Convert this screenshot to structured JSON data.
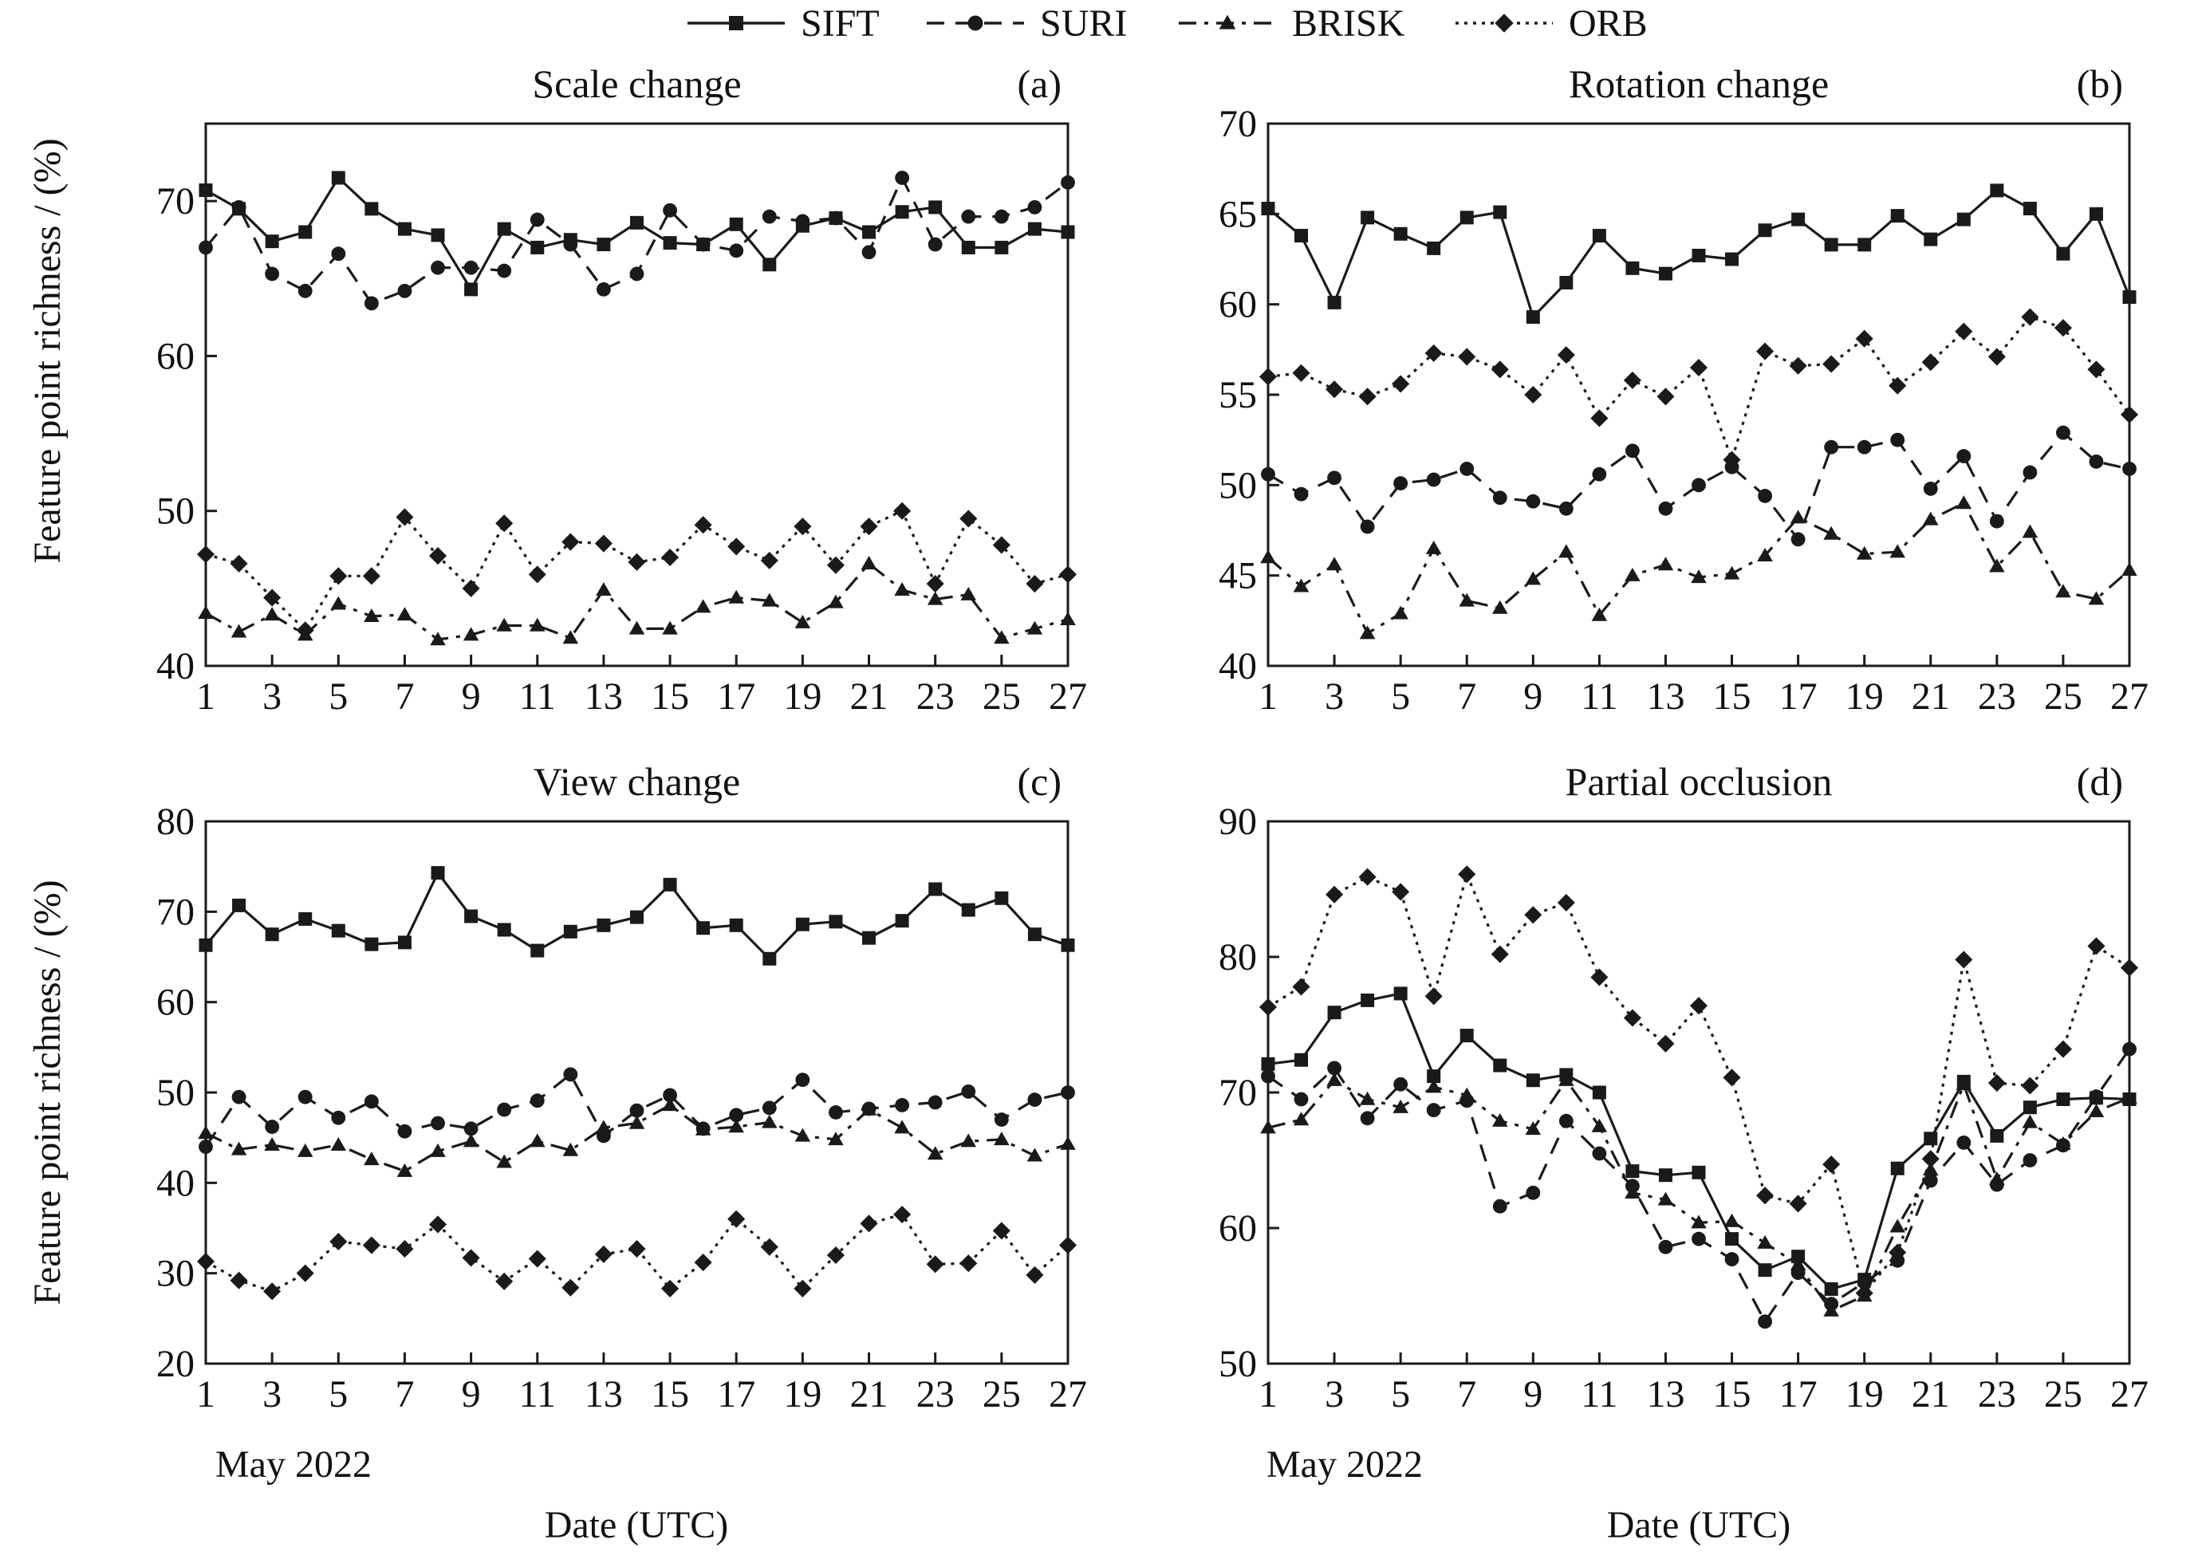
{
  "legend": [
    {
      "name": "SIFT",
      "style": "solid",
      "marker": "square"
    },
    {
      "name": "SURI",
      "style": "dashed",
      "marker": "circle"
    },
    {
      "name": "BRISK",
      "style": "dashdot",
      "marker": "triangle"
    },
    {
      "name": "ORB",
      "style": "dotted",
      "marker": "diamond"
    }
  ],
  "shared": {
    "ylabel": "Feature point richness / (%)",
    "xlabel": "Date (UTC)",
    "month_label": "May 2022",
    "x_ticks": [
      "1",
      "3",
      "5",
      "7",
      "9",
      "11",
      "13",
      "15",
      "17",
      "19",
      "21",
      "23",
      "25",
      "27"
    ]
  },
  "chart_data": [
    {
      "type": "line",
      "title": "Scale change",
      "panel_label": "(a)",
      "x": [
        1,
        2,
        3,
        4,
        5,
        6,
        7,
        8,
        9,
        10,
        11,
        12,
        13,
        14,
        15,
        16,
        17,
        18,
        19,
        20,
        21,
        22,
        23,
        24,
        25,
        26,
        27
      ],
      "ylim": [
        40,
        75
      ],
      "y_ticks": [
        40,
        50,
        60,
        70
      ],
      "series": [
        {
          "name": "SIFT",
          "values": [
            70.7,
            69.5,
            67.4,
            68.0,
            71.5,
            69.5,
            68.2,
            67.8,
            64.3,
            68.2,
            67.0,
            67.5,
            67.2,
            68.6,
            67.3,
            67.2,
            68.5,
            65.9,
            68.4,
            68.9,
            68.0,
            69.3,
            69.6,
            67.0,
            67.0,
            68.2,
            68.0
          ]
        },
        {
          "name": "SURI",
          "values": [
            67.0,
            69.6,
            65.3,
            64.2,
            66.6,
            63.4,
            64.2,
            65.7,
            65.7,
            65.5,
            68.8,
            67.2,
            64.3,
            65.3,
            69.4,
            67.2,
            66.8,
            69.0,
            68.7,
            68.9,
            66.7,
            71.5,
            67.2,
            69.0,
            69.0,
            69.6,
            71.2
          ]
        },
        {
          "name": "BRISK",
          "values": [
            43.4,
            42.2,
            43.3,
            42.0,
            44.0,
            43.2,
            43.3,
            41.7,
            42.0,
            42.6,
            42.6,
            41.8,
            44.9,
            42.4,
            42.4,
            43.8,
            44.4,
            44.2,
            42.8,
            44.1,
            46.6,
            44.9,
            44.3,
            44.6,
            41.8,
            42.4,
            43.0
          ]
        },
        {
          "name": "ORB",
          "values": [
            47.2,
            46.6,
            44.4,
            42.3,
            45.8,
            45.8,
            49.6,
            47.1,
            45.0,
            49.2,
            45.9,
            48.0,
            47.9,
            46.7,
            47.0,
            49.1,
            47.7,
            46.8,
            49.0,
            46.5,
            49.0,
            50.0,
            45.3,
            49.5,
            47.8,
            45.3,
            45.9
          ]
        }
      ]
    },
    {
      "type": "line",
      "title": "Rotation change",
      "panel_label": "(b)",
      "x": [
        1,
        2,
        3,
        4,
        5,
        6,
        7,
        8,
        9,
        10,
        11,
        12,
        13,
        14,
        15,
        16,
        17,
        18,
        19,
        20,
        21,
        22,
        23,
        24,
        25,
        26,
        27
      ],
      "ylim": [
        40,
        70
      ],
      "y_ticks": [
        40,
        45,
        50,
        55,
        60,
        65,
        70
      ],
      "series": [
        {
          "name": "SIFT",
          "values": [
            65.3,
            63.8,
            60.1,
            64.8,
            63.9,
            63.1,
            64.8,
            65.1,
            59.3,
            61.2,
            63.8,
            62.0,
            61.7,
            62.7,
            62.5,
            64.1,
            64.7,
            63.3,
            63.3,
            64.9,
            63.6,
            64.7,
            66.3,
            65.3,
            62.8,
            65.0,
            60.4
          ]
        },
        {
          "name": "SURI",
          "values": [
            50.6,
            49.5,
            50.4,
            47.7,
            50.1,
            50.3,
            50.9,
            49.3,
            49.1,
            48.7,
            50.6,
            51.9,
            48.7,
            50.0,
            51.0,
            49.4,
            47.0,
            52.1,
            52.1,
            52.5,
            49.8,
            51.6,
            48.0,
            50.7,
            52.9,
            51.3,
            50.9
          ]
        },
        {
          "name": "BRISK",
          "values": [
            46.0,
            44.4,
            45.6,
            41.8,
            42.9,
            46.5,
            43.6,
            43.2,
            44.8,
            46.3,
            42.8,
            45.0,
            45.6,
            44.9,
            45.1,
            46.1,
            48.2,
            47.3,
            46.2,
            46.3,
            48.1,
            49.0,
            45.5,
            47.4,
            44.1,
            43.7,
            45.3
          ]
        },
        {
          "name": "ORB",
          "values": [
            56.0,
            56.2,
            55.3,
            54.9,
            55.6,
            57.3,
            57.1,
            56.4,
            55.0,
            57.2,
            53.7,
            55.8,
            54.9,
            56.5,
            51.4,
            57.4,
            56.6,
            56.7,
            58.1,
            55.5,
            56.8,
            58.5,
            57.1,
            59.3,
            58.7,
            56.4,
            53.9
          ]
        }
      ]
    },
    {
      "type": "line",
      "title": "View change",
      "panel_label": "(c)",
      "x": [
        1,
        2,
        3,
        4,
        5,
        6,
        7,
        8,
        9,
        10,
        11,
        12,
        13,
        14,
        15,
        16,
        17,
        18,
        19,
        20,
        21,
        22,
        23,
        24,
        25,
        26,
        27
      ],
      "ylim": [
        20,
        80
      ],
      "y_ticks": [
        20,
        30,
        40,
        50,
        60,
        70,
        80
      ],
      "series": [
        {
          "name": "SIFT",
          "values": [
            66.3,
            70.7,
            67.5,
            69.2,
            67.9,
            66.4,
            66.6,
            74.3,
            69.5,
            68.0,
            65.7,
            67.8,
            68.5,
            69.4,
            73.0,
            68.2,
            68.5,
            64.8,
            68.6,
            68.9,
            67.1,
            69.0,
            72.5,
            70.2,
            71.5,
            67.5,
            66.3
          ]
        },
        {
          "name": "SURI",
          "values": [
            44.0,
            49.5,
            46.2,
            49.5,
            47.2,
            49.0,
            45.7,
            46.6,
            46.0,
            48.1,
            49.1,
            52.0,
            45.2,
            48.0,
            49.7,
            46.0,
            47.5,
            48.3,
            51.4,
            47.8,
            48.2,
            48.6,
            48.9,
            50.1,
            47.0,
            49.2,
            50.0
          ]
        },
        {
          "name": "BRISK",
          "values": [
            45.5,
            43.7,
            44.2,
            43.5,
            44.2,
            42.6,
            41.3,
            43.5,
            44.6,
            42.3,
            44.6,
            43.6,
            46.1,
            46.6,
            48.6,
            45.9,
            46.2,
            46.7,
            45.2,
            44.8,
            48.1,
            46.1,
            43.2,
            44.6,
            44.8,
            43.0,
            44.3
          ]
        },
        {
          "name": "ORB",
          "values": [
            31.3,
            29.2,
            28.0,
            30.0,
            33.5,
            33.1,
            32.7,
            35.4,
            31.7,
            29.1,
            31.6,
            28.4,
            32.1,
            32.7,
            28.3,
            31.2,
            36.0,
            32.9,
            28.3,
            32.0,
            35.5,
            36.5,
            31.0,
            31.1,
            34.7,
            29.8,
            33.1
          ]
        }
      ]
    },
    {
      "type": "line",
      "title": "Partial occlusion",
      "panel_label": "(d)",
      "x": [
        1,
        2,
        3,
        4,
        5,
        6,
        7,
        8,
        9,
        10,
        11,
        12,
        13,
        14,
        15,
        16,
        17,
        18,
        19,
        20,
        21,
        22,
        23,
        24,
        25,
        26,
        27
      ],
      "ylim": [
        50,
        90
      ],
      "y_ticks": [
        50,
        60,
        70,
        80,
        90
      ],
      "series": [
        {
          "name": "SIFT",
          "values": [
            72.1,
            72.4,
            75.9,
            76.8,
            77.3,
            71.2,
            74.2,
            72.0,
            70.9,
            71.3,
            70.0,
            64.2,
            63.9,
            64.1,
            59.2,
            56.9,
            57.9,
            55.5,
            56.2,
            64.4,
            66.6,
            70.8,
            66.8,
            68.9,
            69.5,
            69.6,
            69.5
          ]
        },
        {
          "name": "SURI",
          "values": [
            71.2,
            69.5,
            71.8,
            68.1,
            70.6,
            68.7,
            69.4,
            61.6,
            62.6,
            67.9,
            65.5,
            63.1,
            58.6,
            59.2,
            57.7,
            53.1,
            56.7,
            54.4,
            56.0,
            57.6,
            63.5,
            66.3,
            63.2,
            65.0,
            66.1,
            69.7,
            73.2
          ]
        },
        {
          "name": "BRISK",
          "values": [
            67.4,
            68.0,
            70.9,
            69.5,
            68.9,
            70.4,
            69.8,
            67.9,
            67.3,
            70.9,
            67.5,
            62.6,
            62.1,
            60.4,
            60.5,
            58.9,
            57.3,
            53.9,
            55.0,
            60.1,
            64.3,
            70.6,
            63.6,
            67.8,
            66.2,
            68.6,
            69.6
          ]
        },
        {
          "name": "ORB",
          "values": [
            76.3,
            77.8,
            84.6,
            85.9,
            84.8,
            77.1,
            86.1,
            80.2,
            83.1,
            84.0,
            78.5,
            75.5,
            73.6,
            76.4,
            71.1,
            62.4,
            61.8,
            64.7,
            55.2,
            58.2,
            65.1,
            79.8,
            70.7,
            70.5,
            73.2,
            80.8,
            79.2
          ]
        }
      ]
    }
  ]
}
